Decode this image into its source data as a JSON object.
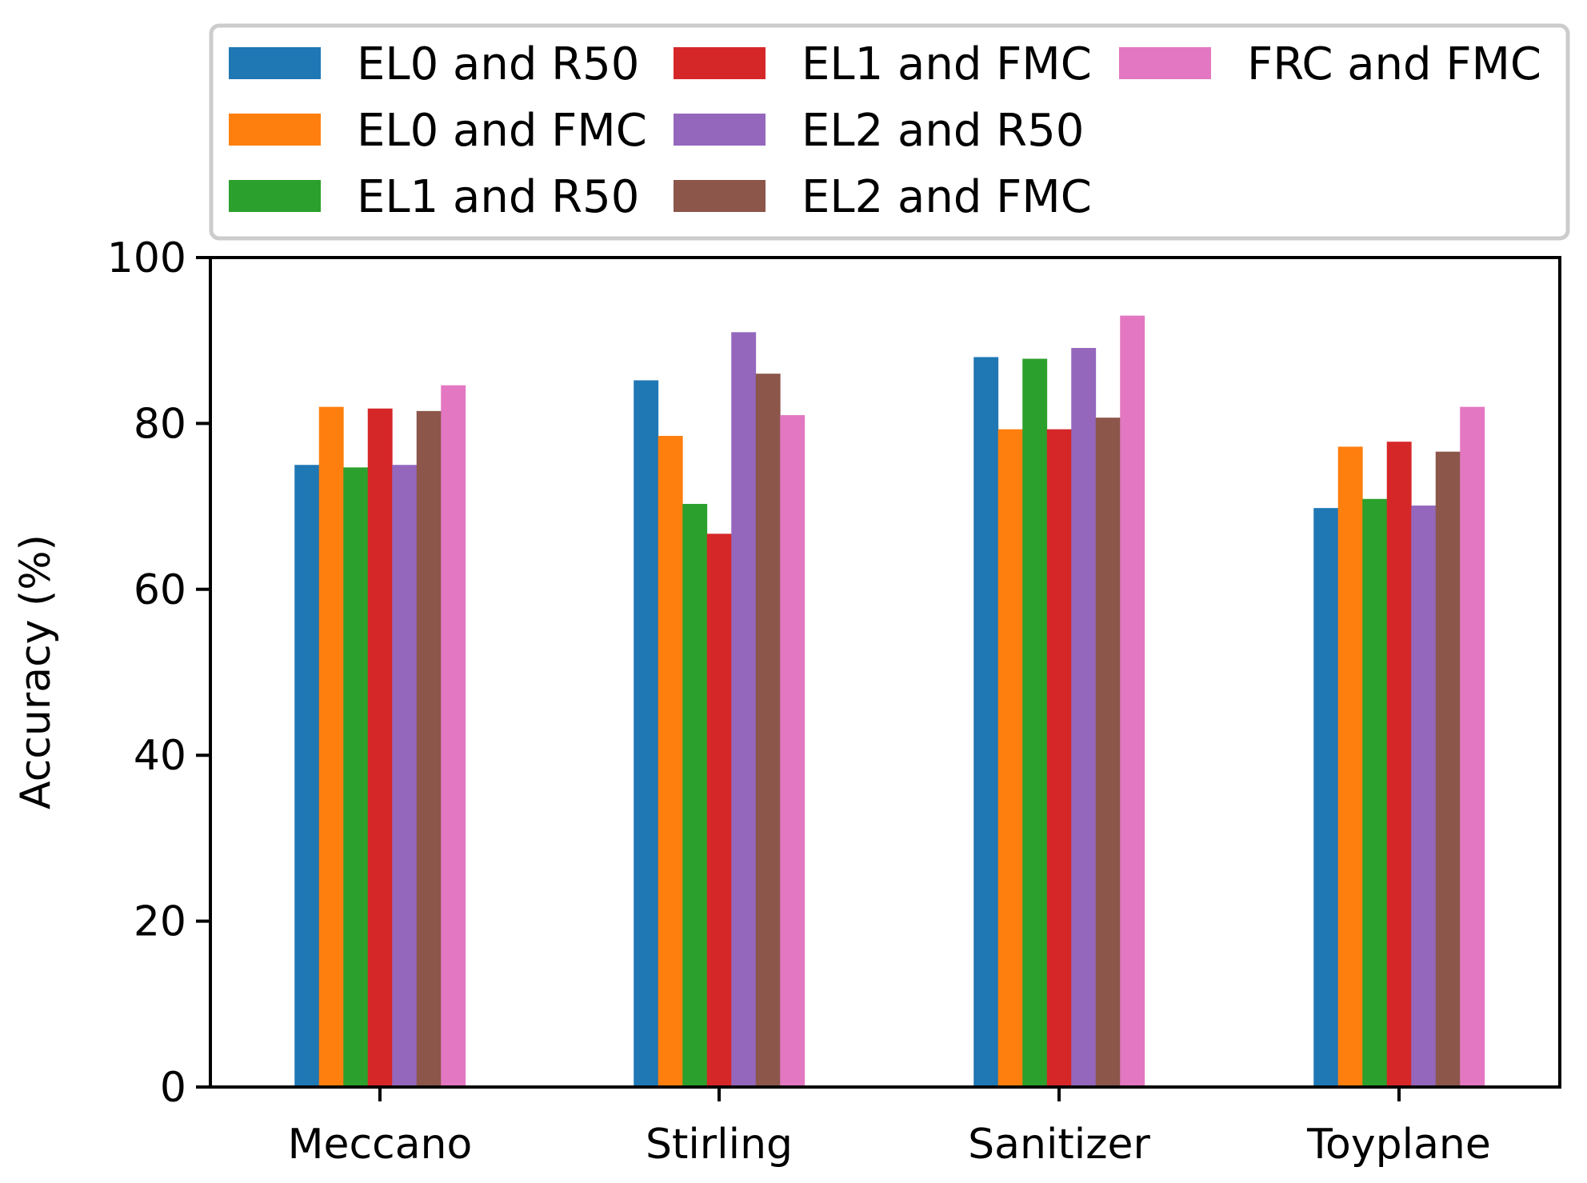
{
  "chart_data": {
    "type": "bar",
    "title": "",
    "xlabel": "",
    "ylabel": "Accuracy (%)",
    "ylim": [
      0,
      100
    ],
    "yticks": [
      "0",
      "20",
      "40",
      "60",
      "80",
      "100"
    ],
    "grid": false,
    "legend_position": "top",
    "categories": [
      "Meccano",
      "Stirling",
      "Sanitizer",
      "Toyplane"
    ],
    "series": [
      {
        "name": "EL0 and R50",
        "color": "#1f77b4",
        "values": [
          75.0,
          85.2,
          88.0,
          69.8
        ]
      },
      {
        "name": "EL0 and FMC",
        "color": "#ff7f0e",
        "values": [
          82.0,
          78.5,
          79.3,
          77.2
        ]
      },
      {
        "name": "EL1 and R50",
        "color": "#2ca02c",
        "values": [
          74.7,
          70.3,
          87.8,
          70.9
        ]
      },
      {
        "name": "EL1 and FMC",
        "color": "#d62728",
        "values": [
          81.8,
          66.7,
          79.3,
          77.8
        ]
      },
      {
        "name": "EL2 and R50",
        "color": "#9467bd",
        "values": [
          75.0,
          91.0,
          89.1,
          70.1
        ]
      },
      {
        "name": "EL2 and FMC",
        "color": "#8c564b",
        "values": [
          81.5,
          86.0,
          80.7,
          76.6
        ]
      },
      {
        "name": "FRC and FMC",
        "color": "#e377c2",
        "values": [
          84.6,
          81.0,
          93.0,
          82.0
        ]
      }
    ]
  }
}
